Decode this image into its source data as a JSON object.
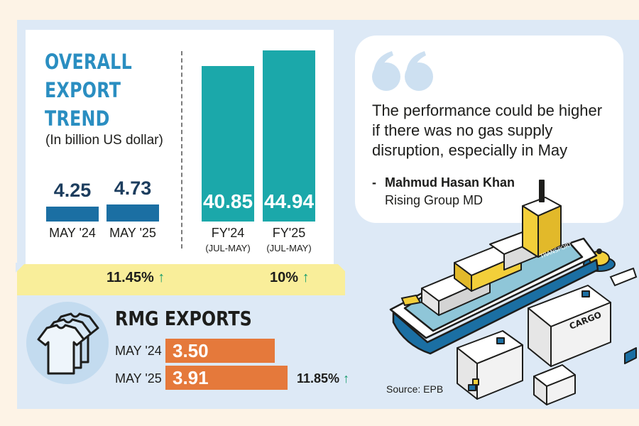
{
  "colors": {
    "accent_title": "#2a8ec1",
    "bar_monthly": "#1b6fa3",
    "bar_fiscal": "#1ba8aa",
    "rmg_bar": "#e5793b",
    "growth_strip": "#f9ee9a",
    "arrow": "#159b6c"
  },
  "overall": {
    "title_lines": [
      "OVERALL",
      "EXPORT",
      "TREND"
    ],
    "unit": "(In billion US dollar)",
    "monthly_growth": "11.45%",
    "fiscal_growth": "10%"
  },
  "rmg": {
    "title": "RMG EXPORTS",
    "growth": "11.85%"
  },
  "quote": {
    "text": "The performance could be higher if there was no gas supply disruption, especially in May",
    "dash": "-",
    "author": "Mahmud Hasan Khan",
    "role": "Rising Group MD"
  },
  "illustration": {
    "ship_label": "TRANSPORT",
    "container_label": "CARGO"
  },
  "source": "Source: EPB",
  "chart_data": [
    {
      "type": "bar",
      "title": "OVERALL EXPORT TREND",
      "ylabel": "In billion US dollar",
      "categories": [
        "MAY '24",
        "MAY '25"
      ],
      "values": [
        4.25,
        4.73
      ],
      "growth": "11.45%"
    },
    {
      "type": "bar",
      "title": "OVERALL EXPORT TREND",
      "ylabel": "In billion US dollar",
      "categories": [
        "FY'24",
        "FY'25"
      ],
      "sub_labels": [
        "(JUL-MAY)",
        "(JUL-MAY)"
      ],
      "values": [
        40.85,
        44.94
      ],
      "growth": "10%"
    },
    {
      "type": "bar",
      "orientation": "horizontal",
      "title": "RMG EXPORTS",
      "categories": [
        "MAY '24",
        "MAY '25"
      ],
      "values": [
        3.5,
        3.91
      ],
      "growth": "11.85%"
    }
  ]
}
